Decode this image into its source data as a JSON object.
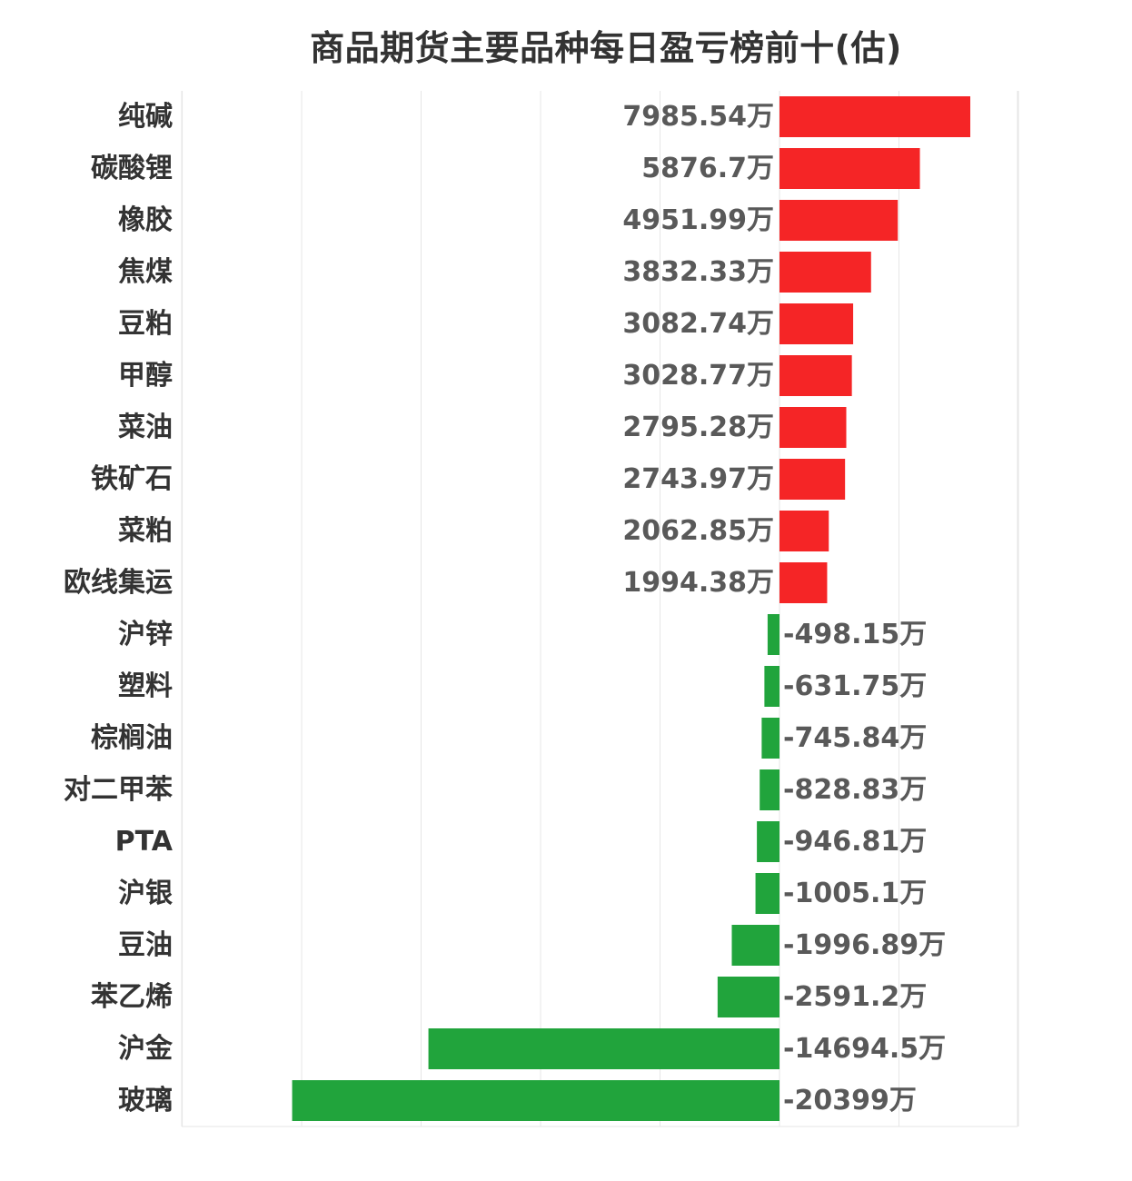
{
  "chart_data": {
    "type": "bar",
    "orientation": "horizontal",
    "title": "商品期货主要品种每日盈亏榜前十(估)",
    "unit": "万",
    "grid": true,
    "legend": "none",
    "xlim": [
      -25000,
      10000
    ],
    "categories": [
      "纯碱",
      "碳酸锂",
      "橡胶",
      "焦煤",
      "豆粕",
      "甲醇",
      "菜油",
      "铁矿石",
      "菜粕",
      "欧线集运",
      "沪锌",
      "塑料",
      "棕榈油",
      "对二甲苯",
      "PTA",
      "沪银",
      "豆油",
      "苯乙烯",
      "沪金",
      "玻璃"
    ],
    "values": [
      7985.54,
      5876.7,
      4951.99,
      3832.33,
      3082.74,
      3028.77,
      2795.28,
      2743.97,
      2062.85,
      1994.38,
      -498.15,
      -631.75,
      -745.84,
      -828.83,
      -946.81,
      -1005.1,
      -1996.89,
      -2591.2,
      -14694.5,
      -20399
    ],
    "value_labels": [
      "7985.54万",
      "5876.7万",
      "4951.99万",
      "3832.33万",
      "3082.74万",
      "3028.77万",
      "2795.28万",
      "2743.97万",
      "2062.85万",
      "1994.38万",
      "-498.15万",
      "-631.75万",
      "-745.84万",
      "-828.83万",
      "-946.81万",
      "-1005.1万",
      "-1996.89万",
      "-2591.2万",
      "-14694.5万",
      "-20399万"
    ],
    "colors": {
      "positive": "#f52526",
      "negative": "#21a43c",
      "grid": "#e6e6e6"
    }
  }
}
